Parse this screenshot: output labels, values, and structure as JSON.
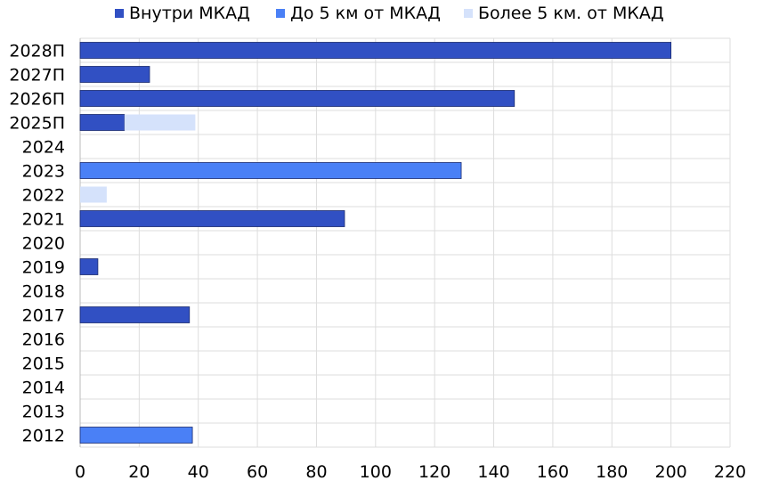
{
  "chart_data": {
    "type": "bar",
    "orientation": "horizontal",
    "stacked": true,
    "title": "",
    "xlabel": "",
    "ylabel": "",
    "categories": [
      "2028П",
      "2027П",
      "2026П",
      "2025П",
      "2024",
      "2023",
      "2022",
      "2021",
      "2020",
      "2019",
      "2018",
      "2017",
      "2016",
      "2015",
      "2014",
      "2013",
      "2012"
    ],
    "series": [
      {
        "name": "Внутри МКАД",
        "color": "#3150c3",
        "values": [
          200,
          23.5,
          147,
          15,
          0,
          0,
          0,
          89.5,
          0,
          6,
          0,
          37,
          0,
          0,
          0,
          0,
          0
        ]
      },
      {
        "name": "До 5 км от МКАД",
        "color": "#4a80f6",
        "values": [
          0,
          0,
          0,
          0,
          0,
          129,
          0,
          0,
          0,
          0,
          0,
          0,
          0,
          0,
          0,
          0,
          38
        ]
      },
      {
        "name": "Более 5 км. от МКАД",
        "color": "#d5e2fb",
        "values": [
          0,
          0,
          0,
          24,
          0,
          0,
          9,
          0,
          0,
          0,
          0,
          0,
          0,
          0,
          0,
          0,
          0
        ]
      }
    ],
    "xlim": [
      0,
      220
    ],
    "xticks": [
      0,
      20,
      40,
      60,
      80,
      100,
      120,
      140,
      160,
      180,
      200,
      220
    ],
    "grid": true,
    "legend_position": "top"
  }
}
